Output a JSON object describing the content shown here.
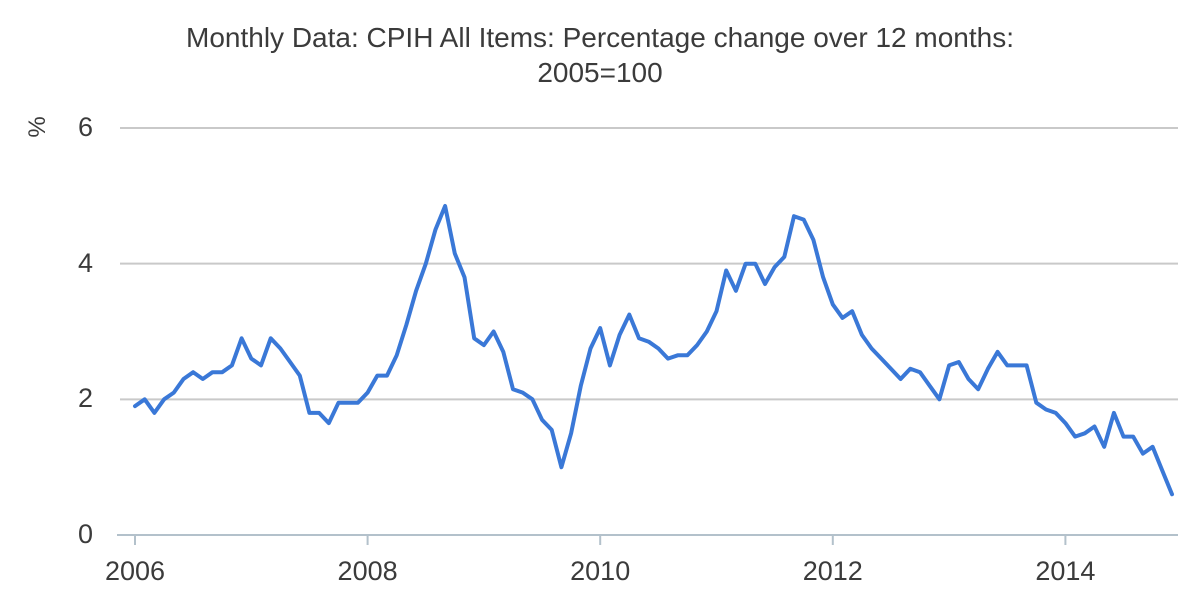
{
  "chart_data": {
    "type": "line",
    "title": "Monthly Data: CPIH All Items: Percentage change over 12 months: 2005=100",
    "title_lines": [
      "Monthly Data: CPIH All Items: Percentage change over 12 months:",
      "2005=100"
    ],
    "ylabel": "%",
    "xlabel": "",
    "legend": "none",
    "grid": "horizontal",
    "x_tick_labels": [
      "2006",
      "2008",
      "2010",
      "2012",
      "2014"
    ],
    "x_ticks": [
      2006,
      2008,
      2010,
      2012,
      2014
    ],
    "y_tick_labels": [
      "0",
      "2",
      "4",
      "6"
    ],
    "y_ticks": [
      0,
      2,
      4,
      6
    ],
    "xlim": [
      2006.0,
      2015.0
    ],
    "ylim": [
      0,
      6
    ],
    "frequency": "monthly",
    "start": "2006-01",
    "end": "2014-12",
    "series": [
      {
        "name": "CPIH All Items: Percentage change over 12 months",
        "color": "#3a78d7",
        "values": [
          1.9,
          2.0,
          1.8,
          2.0,
          2.1,
          2.3,
          2.4,
          2.3,
          2.4,
          2.4,
          2.5,
          2.9,
          2.6,
          2.5,
          2.9,
          2.75,
          2.55,
          2.35,
          1.8,
          1.8,
          1.65,
          1.95,
          1.95,
          1.95,
          2.1,
          2.35,
          2.35,
          2.65,
          3.1,
          3.6,
          4.0,
          4.5,
          4.85,
          4.15,
          3.8,
          2.9,
          2.8,
          3.0,
          2.7,
          2.15,
          2.1,
          2.0,
          1.7,
          1.55,
          1.0,
          1.5,
          2.2,
          2.75,
          3.05,
          2.5,
          2.95,
          3.25,
          2.9,
          2.85,
          2.75,
          2.6,
          2.65,
          2.65,
          2.8,
          3.0,
          3.3,
          3.9,
          3.6,
          4.0,
          4.0,
          3.7,
          3.95,
          4.1,
          4.7,
          4.65,
          4.35,
          3.8,
          3.4,
          3.2,
          3.3,
          2.95,
          2.75,
          2.6,
          2.45,
          2.3,
          2.45,
          2.4,
          2.2,
          2.0,
          2.5,
          2.55,
          2.3,
          2.15,
          2.45,
          2.7,
          2.5,
          2.5,
          2.5,
          1.95,
          1.85,
          1.8,
          1.65,
          1.45,
          1.5,
          1.6,
          1.3,
          1.8,
          1.45,
          1.45,
          1.2,
          1.3,
          0.95,
          0.6
        ]
      }
    ],
    "colors": {
      "line": "#3a78d7",
      "grid": "#c9c9c9",
      "axis": "#b3c1cb",
      "text": "#3b3b3b",
      "background": "#ffffff"
    }
  }
}
